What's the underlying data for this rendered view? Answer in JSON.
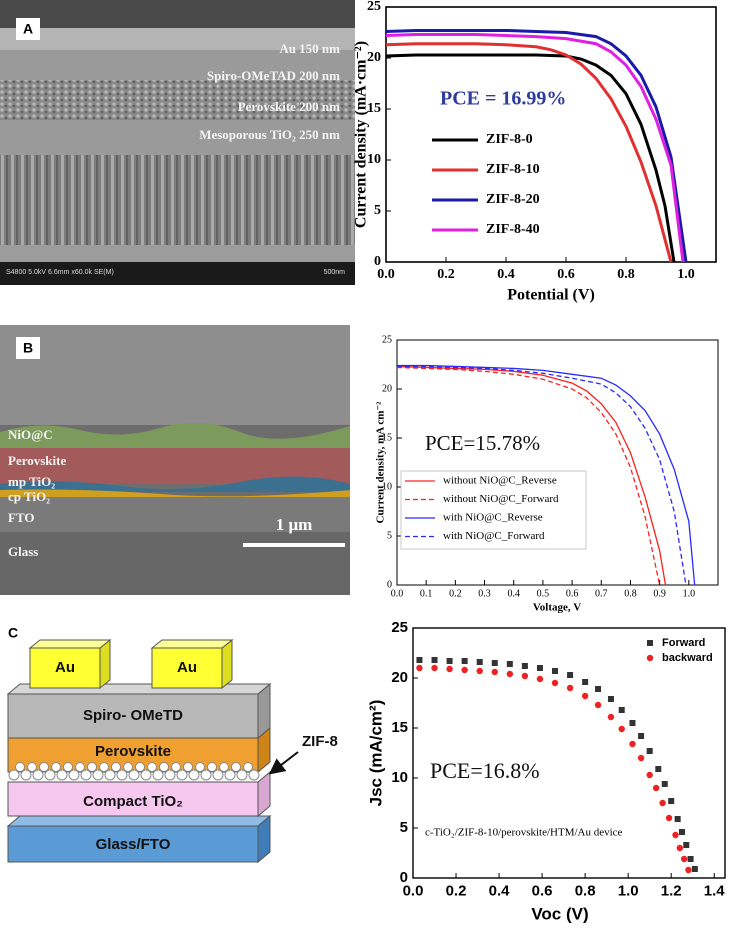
{
  "panel_labels": [
    "A",
    "B",
    "C"
  ],
  "sem_a": {
    "layers": [
      "Au 150 nm",
      "Spiro-OMeTAD 200 nm",
      "Perovskite 200 nm",
      "Mesoporous TiO₂ 250 nm"
    ],
    "footer": "S4800 5.0kV 6.6mm x60.0k SE(M)",
    "scale": "500nm"
  },
  "sem_b": {
    "layers": [
      "NiO@C",
      "Perovskite",
      "mp TiO₂",
      "cp TiO₂",
      "FTO",
      "Glass"
    ],
    "scale": "1 μm"
  },
  "diagram_c": {
    "electrodes": [
      "Au",
      "Au"
    ],
    "layers": [
      "Spiro- OMeTD",
      "Perovskite",
      "Compact TiO₂",
      "Glass/FTO"
    ],
    "callout": "ZIF-8"
  },
  "chart_data": [
    {
      "type": "line",
      "xlabel": "Potential (V)",
      "ylabel": "Current density (mA·cm⁻²)",
      "annotation": "PCE = 16.99%",
      "xlim": [
        0,
        1.1
      ],
      "ylim": [
        0,
        25
      ],
      "xticks": [
        {
          "value": 0,
          "label": "0.0"
        },
        0.2,
        0.4,
        0.6,
        0.8,
        {
          "value": 1,
          "label": "1.0"
        }
      ],
      "yticks": [
        0,
        5,
        10,
        15,
        20,
        25
      ],
      "legend": "lower left",
      "series": [
        {
          "name": "ZIF-8-0",
          "color": "#000000",
          "x": [
            0,
            0.1,
            0.2,
            0.3,
            0.4,
            0.5,
            0.6,
            0.65,
            0.7,
            0.75,
            0.8,
            0.85,
            0.9,
            0.93,
            0.96
          ],
          "values": [
            20.2,
            20.3,
            20.3,
            20.3,
            20.3,
            20.3,
            20.2,
            19.9,
            19.3,
            18.3,
            16.5,
            13.5,
            9,
            5.5,
            0
          ]
        },
        {
          "name": "ZIF-8-10",
          "color": "#e03030",
          "x": [
            0,
            0.1,
            0.2,
            0.3,
            0.4,
            0.5,
            0.55,
            0.6,
            0.65,
            0.7,
            0.75,
            0.8,
            0.85,
            0.9,
            0.95
          ],
          "values": [
            21.3,
            21.4,
            21.4,
            21.4,
            21.3,
            21.1,
            20.8,
            20.3,
            19.4,
            18,
            16,
            13.3,
            9.8,
            5.5,
            0
          ]
        },
        {
          "name": "ZIF-8-20",
          "color": "#1a1aa8",
          "x": [
            0,
            0.1,
            0.2,
            0.3,
            0.4,
            0.5,
            0.6,
            0.7,
            0.75,
            0.8,
            0.85,
            0.9,
            0.95,
            1.0
          ],
          "values": [
            22.6,
            22.7,
            22.7,
            22.7,
            22.7,
            22.6,
            22.5,
            22.1,
            21.4,
            20.2,
            18.3,
            15.2,
            10.3,
            0
          ]
        },
        {
          "name": "ZIF-8-40",
          "color": "#e020e0",
          "x": [
            0,
            0.1,
            0.2,
            0.3,
            0.4,
            0.5,
            0.6,
            0.7,
            0.75,
            0.8,
            0.85,
            0.9,
            0.95,
            0.99
          ],
          "values": [
            22.2,
            22.3,
            22.3,
            22.3,
            22.2,
            22.1,
            21.9,
            21.4,
            20.6,
            19.3,
            17.2,
            14,
            9.5,
            0
          ]
        }
      ]
    },
    {
      "type": "line",
      "xlabel": "Voltage, V",
      "ylabel": "Current density, mA cm⁻²",
      "annotation": "PCE=15.78%",
      "xlim": [
        0,
        1.1
      ],
      "ylim": [
        0,
        25
      ],
      "xticks": [
        {
          "value": 0,
          "label": "0.0"
        },
        0.1,
        0.2,
        0.3,
        0.4,
        0.5,
        0.6,
        0.7,
        0.8,
        0.9,
        {
          "value": 1,
          "label": "1.0"
        }
      ],
      "yticks": [
        0,
        5,
        10,
        15,
        20,
        25
      ],
      "legend": "lower left",
      "series": [
        {
          "name": "without NiO@C_Reverse",
          "color": "#ff2020",
          "dash": false,
          "x": [
            0,
            0.1,
            0.2,
            0.3,
            0.4,
            0.5,
            0.6,
            0.65,
            0.7,
            0.75,
            0.8,
            0.85,
            0.9,
            0.92
          ],
          "values": [
            22.3,
            22.2,
            22.1,
            22,
            21.8,
            21.4,
            20.6,
            19.8,
            18.5,
            16.6,
            13.5,
            9,
            3.5,
            0
          ]
        },
        {
          "name": "without NiO@C_Forward",
          "color": "#ff2020",
          "dash": true,
          "x": [
            0,
            0.1,
            0.2,
            0.3,
            0.4,
            0.5,
            0.6,
            0.65,
            0.7,
            0.75,
            0.8,
            0.85,
            0.9
          ],
          "values": [
            22.2,
            22.1,
            22,
            21.8,
            21.5,
            21,
            20,
            19.1,
            17.6,
            15.4,
            12,
            7,
            0
          ]
        },
        {
          "name": "with NiO@C_Reverse",
          "color": "#2a2aff",
          "dash": false,
          "x": [
            0,
            0.1,
            0.2,
            0.3,
            0.4,
            0.5,
            0.6,
            0.7,
            0.75,
            0.8,
            0.85,
            0.9,
            0.95,
            1.0,
            1.02
          ],
          "values": [
            22.4,
            22.4,
            22.3,
            22.2,
            22.1,
            21.9,
            21.5,
            21.1,
            20.4,
            19.3,
            17.8,
            15.4,
            11.8,
            6.5,
            0
          ]
        },
        {
          "name": "with NiO@C_Forward",
          "color": "#2a2aff",
          "dash": true,
          "x": [
            0,
            0.1,
            0.2,
            0.3,
            0.4,
            0.5,
            0.6,
            0.7,
            0.75,
            0.8,
            0.85,
            0.9,
            0.95,
            0.99
          ],
          "values": [
            22.3,
            22.3,
            22.2,
            22.1,
            21.9,
            21.6,
            21.1,
            20.5,
            19.6,
            18.2,
            16,
            12.8,
            7.5,
            0
          ]
        }
      ]
    },
    {
      "type": "scatter",
      "xlabel": "Voc (V)",
      "ylabel": "Jsc (mA/cm²)",
      "annotation": "PCE=16.8%",
      "note": "c-TiO₂/ZIF-8-10/perovskite/HTM/Au device",
      "xlim": [
        0,
        1.45
      ],
      "ylim": [
        0,
        25
      ],
      "xticks": [
        {
          "value": 0,
          "label": "0.0"
        },
        0.2,
        0.4,
        0.6,
        0.8,
        {
          "value": 1,
          "label": "1.0"
        },
        1.2,
        1.4
      ],
      "yticks": [
        0,
        5,
        10,
        15,
        20,
        25
      ],
      "legend": "upper right",
      "series": [
        {
          "name": "Forward",
          "color": "#333333",
          "marker": "square",
          "x": [
            0.03,
            0.1,
            0.17,
            0.24,
            0.31,
            0.38,
            0.45,
            0.52,
            0.59,
            0.66,
            0.73,
            0.8,
            0.86,
            0.92,
            0.97,
            1.02,
            1.06,
            1.1,
            1.14,
            1.17,
            1.2,
            1.23,
            1.25,
            1.27,
            1.29,
            1.31
          ],
          "values": [
            21.8,
            21.8,
            21.7,
            21.7,
            21.6,
            21.5,
            21.4,
            21.2,
            21.0,
            20.7,
            20.3,
            19.6,
            18.9,
            17.9,
            16.8,
            15.5,
            14.2,
            12.7,
            10.9,
            9.4,
            7.7,
            5.9,
            4.6,
            3.3,
            1.9,
            0.9
          ]
        },
        {
          "name": "backward",
          "color": "#ee2222",
          "marker": "circle",
          "x": [
            0.03,
            0.1,
            0.17,
            0.24,
            0.31,
            0.38,
            0.45,
            0.52,
            0.59,
            0.66,
            0.73,
            0.8,
            0.86,
            0.92,
            0.97,
            1.02,
            1.06,
            1.1,
            1.13,
            1.16,
            1.19,
            1.22,
            1.24,
            1.26,
            1.28
          ],
          "values": [
            21.0,
            21.0,
            20.9,
            20.8,
            20.7,
            20.6,
            20.4,
            20.2,
            19.9,
            19.5,
            19.0,
            18.2,
            17.3,
            16.1,
            14.9,
            13.4,
            12.0,
            10.3,
            9.0,
            7.5,
            6.0,
            4.3,
            3.0,
            1.9,
            0.8
          ]
        }
      ]
    }
  ]
}
